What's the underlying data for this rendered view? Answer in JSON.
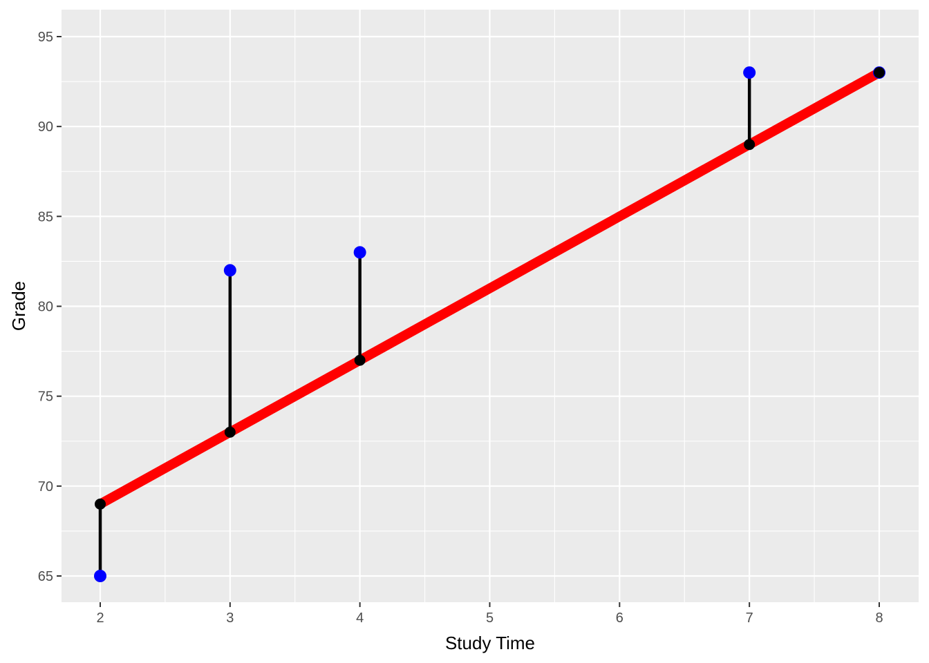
{
  "chart_data": {
    "type": "scatter",
    "title": "",
    "xlabel": "Study Time",
    "ylabel": "Grade",
    "xlim": [
      1.7,
      8.3
    ],
    "ylim": [
      63.5,
      96.6
    ],
    "grid": true,
    "legend": "none",
    "x_ticks": [
      2,
      3,
      4,
      5,
      6,
      7,
      8
    ],
    "y_ticks": [
      65,
      70,
      75,
      80,
      85,
      90,
      95
    ],
    "series": [
      {
        "name": "observed",
        "type": "scatter",
        "color": "#0000ff",
        "points": [
          {
            "x": 2,
            "y": 65
          },
          {
            "x": 3,
            "y": 82
          },
          {
            "x": 4,
            "y": 83
          },
          {
            "x": 7,
            "y": 93
          },
          {
            "x": 8,
            "y": 93
          }
        ]
      },
      {
        "name": "fitted",
        "type": "scatter",
        "color": "#000000",
        "points": [
          {
            "x": 2,
            "y": 69
          },
          {
            "x": 3,
            "y": 73
          },
          {
            "x": 4,
            "y": 77
          },
          {
            "x": 7,
            "y": 89
          },
          {
            "x": 8,
            "y": 93
          }
        ]
      },
      {
        "name": "regression line",
        "type": "line",
        "color": "#ff0000",
        "points": [
          {
            "x": 2,
            "y": 69
          },
          {
            "x": 8,
            "y": 93
          }
        ]
      },
      {
        "name": "residuals",
        "type": "segment",
        "color": "#000000",
        "segments": [
          {
            "x": 2,
            "y_from": 65,
            "y_to": 69
          },
          {
            "x": 3,
            "y_from": 82,
            "y_to": 73
          },
          {
            "x": 4,
            "y_from": 83,
            "y_to": 77
          },
          {
            "x": 7,
            "y_from": 93,
            "y_to": 89
          },
          {
            "x": 8,
            "y_from": 93,
            "y_to": 93
          }
        ]
      }
    ]
  },
  "colors": {
    "panel_background": "#ebebeb",
    "grid_major": "#ffffff",
    "observed": "#0000ff",
    "fitted": "#000000",
    "regression": "#ff0000"
  }
}
